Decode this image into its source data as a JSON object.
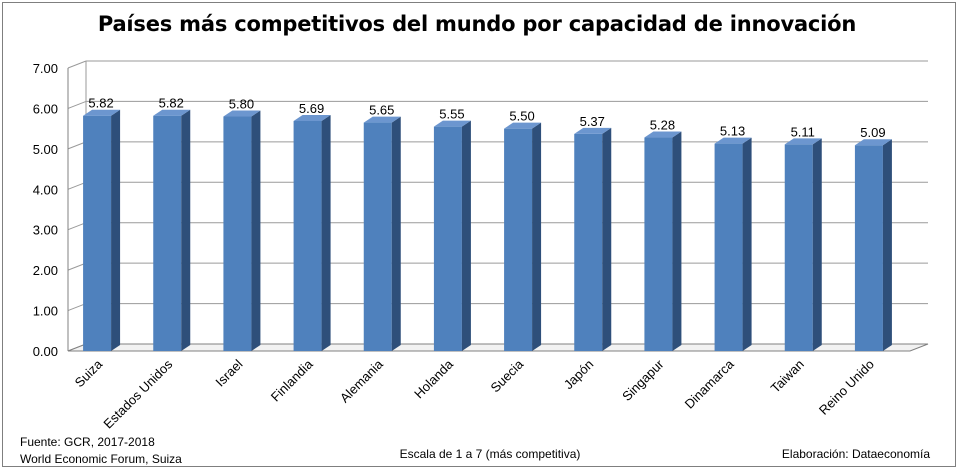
{
  "chart_data": {
    "type": "bar",
    "title": "Países más competitivos del mundo por capacidad de innovación",
    "categories": [
      "Suiza",
      "Estados Unidos",
      "Israel",
      "Finlandia",
      "Alemania",
      "Holanda",
      "Suecia",
      "Japón",
      "Singapur",
      "Dinamarca",
      "Taiwan",
      "Reino Unido"
    ],
    "values": [
      5.82,
      5.82,
      5.8,
      5.69,
      5.65,
      5.55,
      5.5,
      5.37,
      5.28,
      5.13,
      5.11,
      5.09
    ],
    "value_labels": [
      "5.82",
      "5.82",
      "5.80",
      "5.69",
      "5.65",
      "5.55",
      "5.50",
      "5.37",
      "5.28",
      "5.13",
      "5.11",
      "5.09"
    ],
    "ylim": [
      0,
      7
    ],
    "yticks": [
      "0.00",
      "1.00",
      "2.00",
      "3.00",
      "4.00",
      "5.00",
      "6.00",
      "7.00"
    ],
    "xlabel": "Escala de 1 a 7 (más competitiva)",
    "ylabel": "",
    "grid": true,
    "bar_color": "#4f81bd",
    "bar_side_color": "#2e4f7a",
    "bar_top_color": "#6c96cf"
  },
  "footer": {
    "source_line1": "Fuente:  GCR, 2017-2018",
    "source_line2": "World Economic Forum, Suiza",
    "scale_note": "Escala de 1 a 7 (más competitiva)",
    "credit": "Elaboración: Dataeconomía"
  }
}
